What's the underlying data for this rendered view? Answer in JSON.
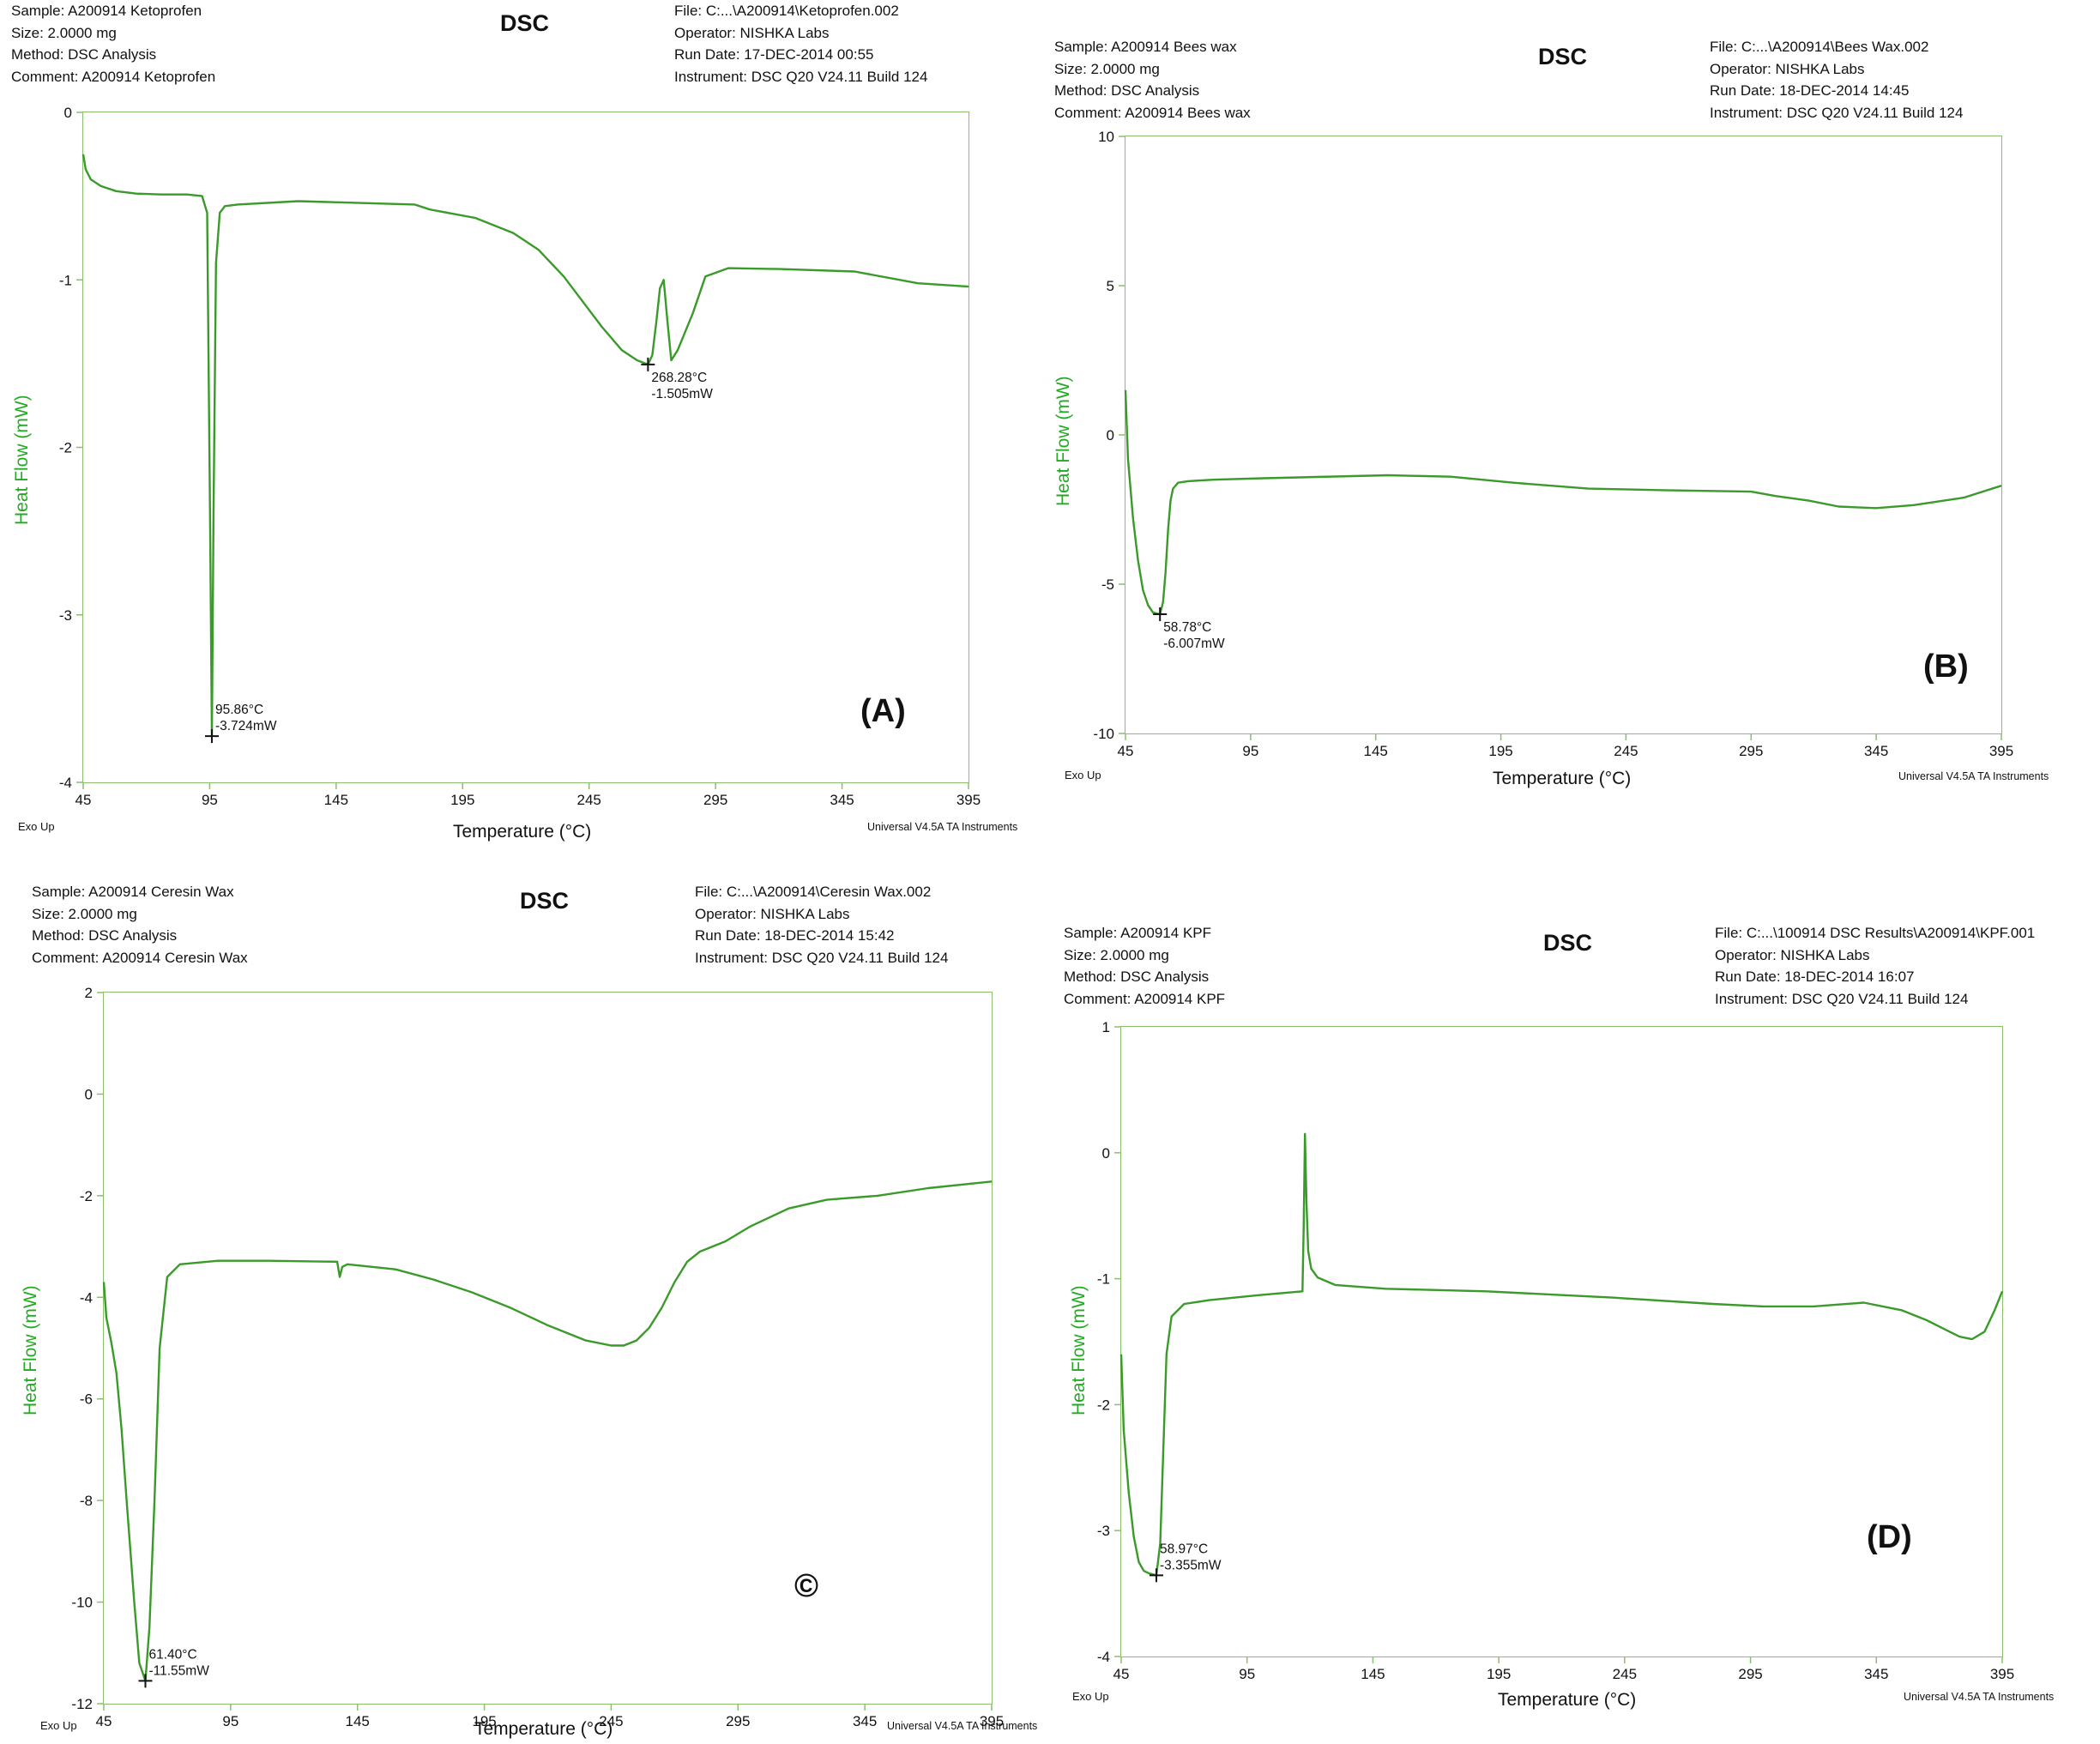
{
  "line_color": "#3a9a2a",
  "frame_color": "#8bbf6e",
  "panels": [
    {
      "header_left": [
        "Sample: A200914 Ketoprofen",
        "Size:  2.0000 mg",
        "Method: DSC Analysis",
        "Comment: A200914 Ketoprofen"
      ],
      "header_right": [
        "File: C:...\\A200914\\Ketoprofen.002",
        "Operator: NISHKA Labs",
        "Run Date: 17-DEC-2014 00:55",
        "Instrument: DSC Q20 V24.11 Build 124"
      ],
      "dsc_title": "DSC",
      "panel_label": "(A)",
      "footer_left": "Exo Up",
      "footer_right": "Universal V4.5A TA Instruments"
    },
    {
      "header_left": [
        "Sample: A200914 Bees wax",
        "Size:  2.0000 mg",
        "Method: DSC Analysis",
        "Comment: A200914 Bees wax"
      ],
      "header_right": [
        "File: C:...\\A200914\\Bees Wax.002",
        "Operator: NISHKA Labs",
        "Run Date: 18-DEC-2014 14:45",
        "Instrument: DSC Q20 V24.11 Build 124"
      ],
      "dsc_title": "DSC",
      "panel_label": "(B)",
      "footer_left": "Exo Up",
      "footer_right": "Universal V4.5A TA Instruments"
    },
    {
      "header_left": [
        "Sample: A200914 Ceresin Wax",
        "Size:  2.0000 mg",
        "Method: DSC Analysis",
        "Comment: A200914 Ceresin Wax"
      ],
      "header_right": [
        "File: C:...\\A200914\\Ceresin Wax.002",
        "Operator: NISHKA Labs",
        "Run Date: 18-DEC-2014 15:42",
        "Instrument: DSC Q20 V24.11 Build 124"
      ],
      "dsc_title": "DSC",
      "panel_label": "©",
      "footer_left": "Exo Up",
      "footer_right": "Universal V4.5A TA Instruments"
    },
    {
      "header_left": [
        "Sample: A200914 KPF",
        "Size:  2.0000 mg",
        "Method: DSC Analysis",
        "Comment: A200914 KPF"
      ],
      "header_right": [
        "File: C:...\\100914 DSC Results\\A200914\\KPF.001",
        "Operator: NISHKA Labs",
        "Run Date: 18-DEC-2014 16:07",
        "Instrument: DSC Q20 V24.11 Build 124"
      ],
      "dsc_title": "DSC",
      "panel_label": "(D)",
      "footer_left": "Exo Up",
      "footer_right": "Universal V4.5A TA Instruments"
    }
  ],
  "chart_data": [
    {
      "type": "line",
      "title": "DSC",
      "xlabel": "Temperature (°C)",
      "ylabel": "Heat Flow (mW)",
      "xlim": [
        45,
        395
      ],
      "ylim": [
        -4,
        0
      ],
      "xticks": [
        45,
        95,
        145,
        195,
        245,
        295,
        345,
        395
      ],
      "yticks": [
        0,
        -1,
        -2,
        -3,
        -4
      ],
      "grid": false,
      "series": [
        {
          "x": [
            45,
            46,
            48,
            52,
            58,
            66,
            76,
            86,
            92,
            94,
            95.2,
            95.86,
            96.5,
            97.5,
            99,
            101,
            106,
            130,
            176,
            182,
            200,
            215,
            225,
            235,
            242,
            250,
            258,
            264,
            268.28,
            270,
            271.6,
            273,
            274.5,
            276,
            277.5,
            280,
            286,
            291,
            300,
            320,
            350,
            375,
            395
          ],
          "y": [
            -0.25,
            -0.34,
            -0.4,
            -0.44,
            -0.47,
            -0.485,
            -0.49,
            -0.49,
            -0.5,
            -0.6,
            -2.5,
            -3.724,
            -2.4,
            -0.9,
            -0.6,
            -0.56,
            -0.55,
            -0.53,
            -0.55,
            -0.58,
            -0.63,
            -0.72,
            -0.82,
            -0.98,
            -1.12,
            -1.28,
            -1.42,
            -1.48,
            -1.505,
            -1.45,
            -1.25,
            -1.05,
            -1.0,
            -1.25,
            -1.48,
            -1.42,
            -1.2,
            -0.98,
            -0.93,
            -0.935,
            -0.95,
            -1.02,
            -1.04
          ]
        }
      ],
      "annotations": [
        {
          "x": 95.86,
          "y": -3.724,
          "lines": [
            "95.86°C",
            "-3.724mW"
          ]
        },
        {
          "x": 268.28,
          "y": -1.505,
          "lines": [
            "268.28°C",
            "-1.505mW"
          ]
        }
      ]
    },
    {
      "type": "line",
      "title": "DSC",
      "xlabel": "Temperature (°C)",
      "ylabel": "Heat Flow (mW)",
      "xlim": [
        45,
        395
      ],
      "ylim": [
        -10,
        10
      ],
      "xticks": [
        45,
        95,
        145,
        195,
        245,
        295,
        345,
        395
      ],
      "yticks": [
        10,
        5,
        0,
        -5,
        -10
      ],
      "grid": false,
      "series": [
        {
          "x": [
            45,
            46,
            48,
            50,
            52,
            54,
            56,
            58.78,
            60,
            61,
            62,
            63,
            64,
            66,
            70,
            80,
            100,
            150,
            175,
            200,
            230,
            260,
            295,
            305,
            318,
            330,
            345,
            360,
            380,
            395
          ],
          "y": [
            1.5,
            -0.8,
            -2.8,
            -4.2,
            -5.2,
            -5.7,
            -5.95,
            -6.007,
            -5.6,
            -4.6,
            -3.2,
            -2.2,
            -1.8,
            -1.6,
            -1.55,
            -1.5,
            -1.45,
            -1.35,
            -1.4,
            -1.6,
            -1.8,
            -1.85,
            -1.9,
            -2.05,
            -2.2,
            -2.4,
            -2.45,
            -2.35,
            -2.1,
            -1.7
          ]
        }
      ],
      "annotations": [
        {
          "x": 58.78,
          "y": -6.007,
          "lines": [
            "58.78°C",
            "-6.007mW"
          ]
        }
      ]
    },
    {
      "type": "line",
      "title": "DSC",
      "xlabel": "Temperature (°C)",
      "ylabel": "Heat Flow (mW)",
      "xlim": [
        45,
        395
      ],
      "ylim": [
        -12,
        2
      ],
      "xticks": [
        45,
        95,
        145,
        195,
        245,
        295,
        345,
        395
      ],
      "yticks": [
        2,
        0,
        -2,
        -4,
        -6,
        -8,
        -10,
        -12
      ],
      "grid": false,
      "series": [
        {
          "x": [
            45,
            46,
            48,
            50,
            52,
            54,
            57,
            59,
            61.4,
            63,
            65,
            67,
            70,
            75,
            90,
            110,
            137,
            138,
            139,
            141,
            160,
            175,
            190,
            205,
            220,
            235,
            245,
            250,
            255,
            260,
            265,
            270,
            275,
            280,
            290,
            300,
            315,
            330,
            350,
            370,
            395
          ],
          "y": [
            -3.7,
            -4.4,
            -4.9,
            -5.5,
            -6.6,
            -8.0,
            -10.0,
            -11.2,
            -11.55,
            -10.5,
            -8.0,
            -5.0,
            -3.6,
            -3.35,
            -3.28,
            -3.28,
            -3.3,
            -3.6,
            -3.4,
            -3.35,
            -3.45,
            -3.65,
            -3.9,
            -4.2,
            -4.55,
            -4.85,
            -4.95,
            -4.95,
            -4.85,
            -4.6,
            -4.2,
            -3.7,
            -3.3,
            -3.1,
            -2.9,
            -2.6,
            -2.25,
            -2.08,
            -2.0,
            -1.85,
            -1.72
          ]
        }
      ],
      "annotations": [
        {
          "x": 61.4,
          "y": -11.55,
          "lines": [
            "61.40°C",
            "-11.55mW"
          ]
        }
      ]
    },
    {
      "type": "line",
      "title": "DSC",
      "xlabel": "Temperature (°C)",
      "ylabel": "Heat Flow (mW)",
      "xlim": [
        45,
        395
      ],
      "ylim": [
        -4,
        1
      ],
      "xticks": [
        45,
        95,
        145,
        195,
        245,
        295,
        345,
        395
      ],
      "yticks": [
        1,
        0,
        -1,
        -2,
        -3,
        -4
      ],
      "grid": false,
      "series": [
        {
          "x": [
            45,
            46,
            48,
            50,
            52,
            54,
            56,
            58.97,
            60.5,
            61.5,
            63,
            65,
            70,
            80,
            100,
            117,
            117.5,
            118,
            118.6,
            119.3,
            120.5,
            123,
            130,
            150,
            190,
            240,
            280,
            300,
            320,
            340,
            355,
            365,
            372,
            378,
            383,
            388,
            392,
            395
          ],
          "y": [
            -1.6,
            -2.2,
            -2.7,
            -3.05,
            -3.25,
            -3.32,
            -3.34,
            -3.355,
            -3.1,
            -2.5,
            -1.6,
            -1.3,
            -1.2,
            -1.17,
            -1.13,
            -1.1,
            -0.6,
            0.15,
            -0.4,
            -0.78,
            -0.92,
            -0.99,
            -1.05,
            -1.08,
            -1.1,
            -1.15,
            -1.2,
            -1.22,
            -1.22,
            -1.19,
            -1.25,
            -1.33,
            -1.4,
            -1.46,
            -1.48,
            -1.42,
            -1.25,
            -1.1
          ]
        }
      ],
      "annotations": [
        {
          "x": 58.97,
          "y": -3.355,
          "lines": [
            "58.97°C",
            "-3.355mW"
          ]
        }
      ]
    }
  ]
}
